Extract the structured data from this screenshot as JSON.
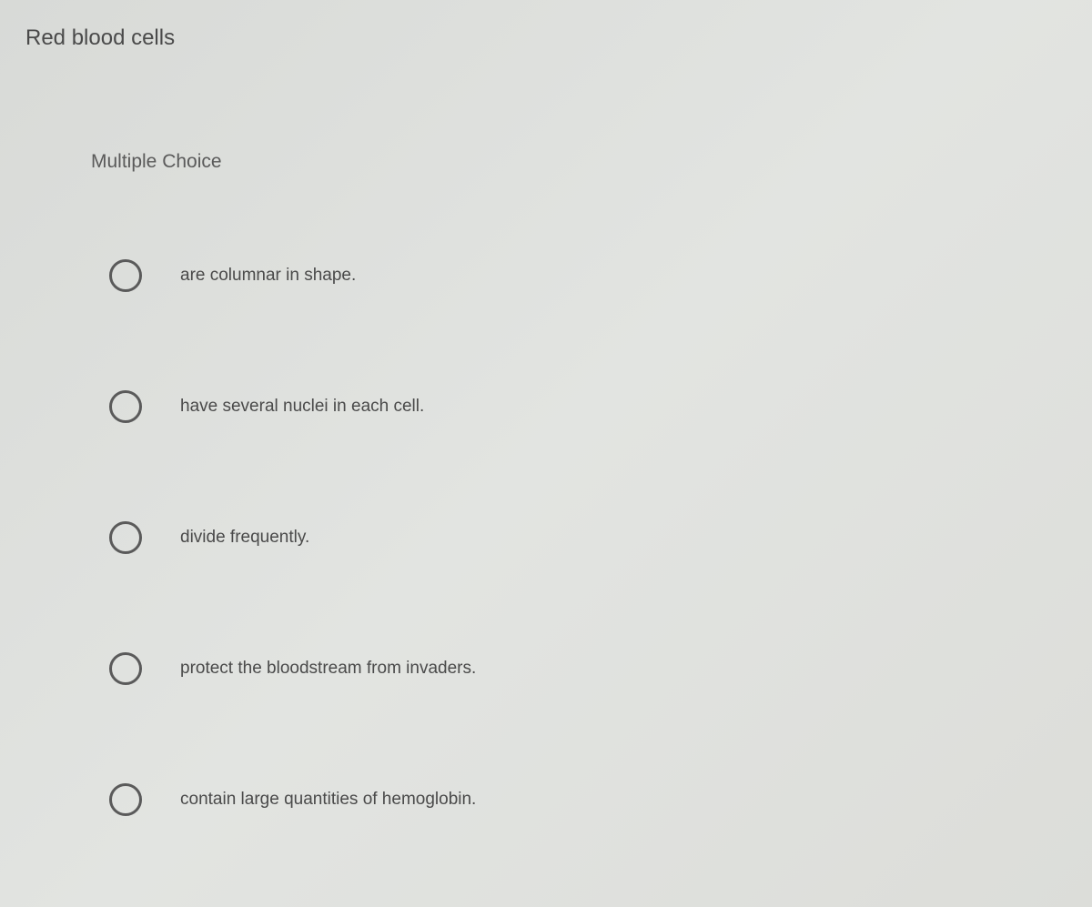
{
  "question": {
    "title": "Red blood cells",
    "type": "Multiple Choice",
    "options": [
      {
        "label": "are columnar in shape."
      },
      {
        "label": "have several nuclei in each cell."
      },
      {
        "label": "divide frequently."
      },
      {
        "label": "protect the bloodstream from invaders."
      },
      {
        "label": "contain large quantities of hemoglobin."
      }
    ]
  },
  "styling": {
    "background_gradient_start": "#d8dad7",
    "background_gradient_mid": "#e2e4e1",
    "background_gradient_end": "#dcddd9",
    "title_color": "#4a4a4a",
    "title_fontsize": 24,
    "type_color": "#5a5a5a",
    "type_fontsize": 21,
    "option_label_color": "#4a4a4a",
    "option_label_fontsize": 19,
    "radio_border_color": "#5a5a5a",
    "radio_size": 36,
    "radio_border_width": 3
  }
}
